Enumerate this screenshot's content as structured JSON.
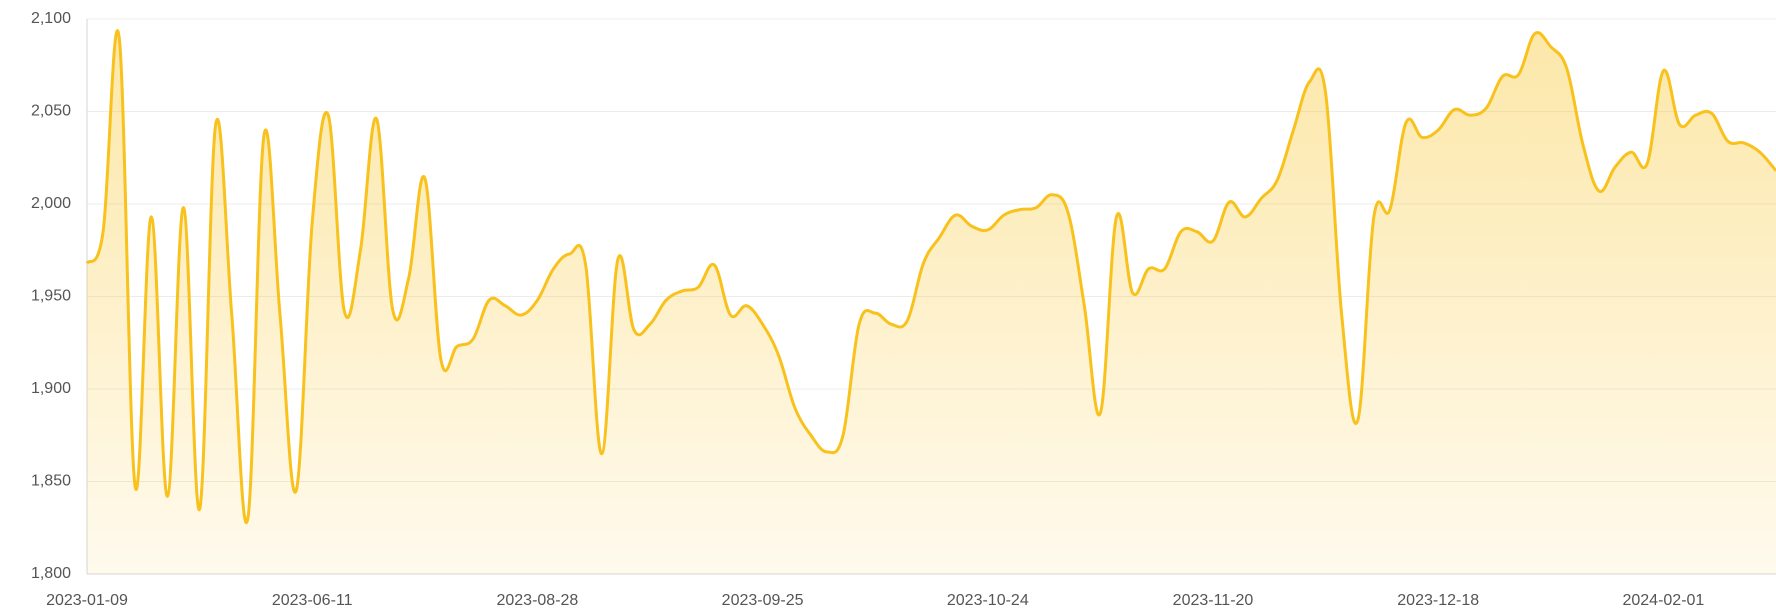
{
  "chart_data": {
    "type": "area",
    "categories": [
      "2023-01-09",
      null,
      null,
      null,
      null,
      null,
      null,
      null,
      null,
      null,
      null,
      null,
      null,
      null,
      "2023-06-11",
      null,
      null,
      null,
      null,
      null,
      null,
      null,
      null,
      null,
      null,
      null,
      null,
      null,
      "2023-08-28",
      null,
      null,
      null,
      null,
      null,
      null,
      null,
      null,
      null,
      null,
      null,
      null,
      null,
      "2023-09-25",
      null,
      null,
      null,
      null,
      null,
      null,
      null,
      null,
      null,
      null,
      null,
      null,
      null,
      "2023-10-24",
      null,
      null,
      null,
      null,
      null,
      null,
      null,
      null,
      null,
      null,
      null,
      null,
      null,
      "2023-11-20",
      null,
      null,
      null,
      null,
      null,
      null,
      null,
      null,
      null,
      null,
      null,
      null,
      null,
      "2023-12-18",
      null,
      null,
      null,
      null,
      null,
      null,
      null,
      null,
      null,
      null,
      null,
      null,
      null,
      "2024-02-01",
      null,
      null,
      null,
      null,
      null,
      null,
      null
    ],
    "values": [
      1968,
      1985,
      2090,
      1847,
      1993,
      1842,
      1998,
      1835,
      2043,
      1940,
      1830,
      2037,
      1940,
      1845,
      1990,
      2048,
      1942,
      1975,
      2046,
      1943,
      1960,
      2014,
      1916,
      1923,
      1927,
      1948,
      1945,
      1940,
      1948,
      1965,
      1973,
      1967,
      1865,
      1970,
      1932,
      1935,
      1948,
      1953,
      1955,
      1967,
      1940,
      1945,
      1935,
      1918,
      1890,
      1875,
      1866,
      1875,
      1935,
      1941,
      1935,
      1937,
      1968,
      1982,
      1994,
      1988,
      1986,
      1994,
      1997,
      1998,
      2005,
      1995,
      1945,
      1887,
      1993,
      1952,
      1965,
      1965,
      1985,
      1985,
      1980,
      2001,
      1993,
      2003,
      2013,
      2040,
      2066,
      2060,
      1940,
      1883,
      1993,
      1997,
      2044,
      2036,
      2040,
      2051,
      2048,
      2052,
      2069,
      2070,
      2092,
      2085,
      2073,
      2032,
      2007,
      2020,
      2028,
      2022,
      2072,
      2043,
      2048,
      2049,
      2034,
      2033,
      2028,
      2018
    ],
    "color": "#f8c11c",
    "ylim": [
      1800,
      2100
    ],
    "yticks": [
      {
        "value": 1800,
        "label": "1,800"
      },
      {
        "value": 1850,
        "label": "1,850"
      },
      {
        "value": 1900,
        "label": "1,900"
      },
      {
        "value": 1950,
        "label": "1,950"
      },
      {
        "value": 2000,
        "label": "2,000"
      },
      {
        "value": 2050,
        "label": "2,050"
      },
      {
        "value": 2100,
        "label": "2,100"
      }
    ],
    "grid": true
  }
}
